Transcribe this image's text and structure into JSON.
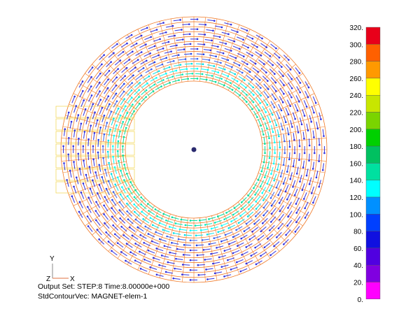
{
  "colors": {
    "mesh": "#f07a28",
    "background": "#ffffff",
    "center_node": "#2a2a6e"
  },
  "legend": {
    "labels": [
      "320.",
      "300.",
      "280.",
      "260.",
      "240.",
      "220.",
      "200.",
      "180.",
      "160.",
      "140.",
      "120.",
      "100.",
      "80.",
      "60.",
      "40.",
      "20.",
      "0."
    ],
    "colors": [
      "#e8001a",
      "#ff6000",
      "#ff9900",
      "#ffff00",
      "#c8e600",
      "#7ad400",
      "#00d000",
      "#00c060",
      "#00e0a0",
      "#00ffff",
      "#0090ff",
      "#0040ff",
      "#1010e0",
      "#5000e0",
      "#8000e0",
      "#ff00ff"
    ]
  },
  "triad": {
    "y_label": "Y",
    "z_label": "Z",
    "x_label": "X"
  },
  "info": {
    "output_set": "Output Set: STEP:8 Time:8.00000e+000",
    "contour": "StdContourVec: MAGNET-elem-1"
  }
}
